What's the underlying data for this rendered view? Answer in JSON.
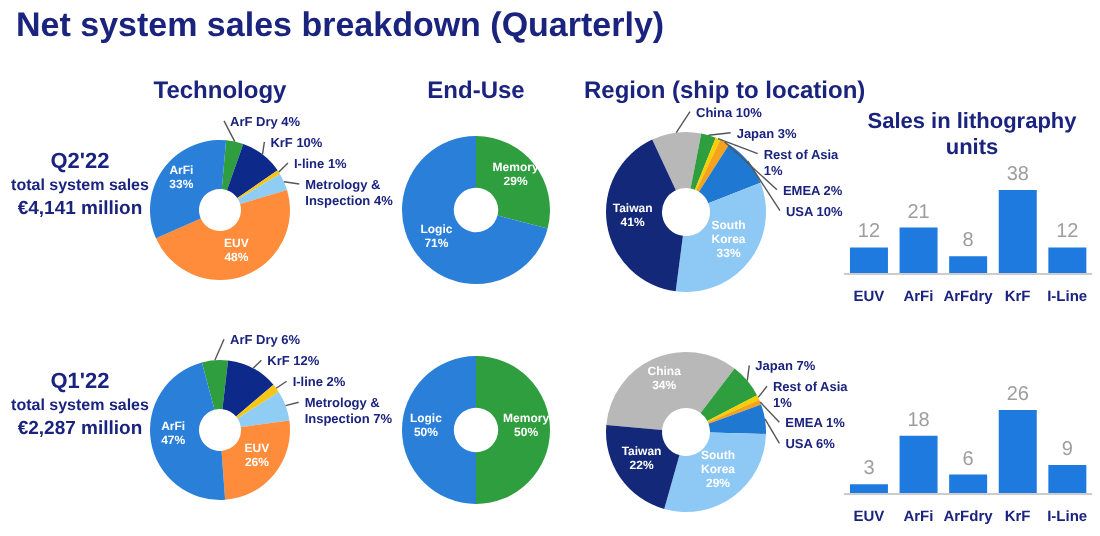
{
  "chart_data": [
    {
      "type": "other",
      "title": "Net system sales breakdown (Quarterly)",
      "annotations": [
        "Q2'22",
        "total system sales",
        "€4,141 million"
      ]
    },
    {
      "type": "donut",
      "title": "Technology",
      "categories": [
        "ArF Dry",
        "KrF",
        "I-line",
        "Metrology & Inspection",
        "EUV",
        "ArFi"
      ],
      "values": [
        4,
        10,
        1,
        4,
        48,
        33
      ],
      "value_labels": [
        "4%",
        "10%",
        "1%",
        "4%",
        "48%",
        "33%"
      ],
      "colors": [
        "#2e9e3e",
        "#0d2a8a",
        "#f5c518",
        "#90cdf4",
        "#ff8c3a",
        "#2a7fd8"
      ]
    },
    {
      "type": "donut",
      "title": "End-Use",
      "categories": [
        "Memory",
        "Logic"
      ],
      "values": [
        29,
        71
      ],
      "value_labels": [
        "29%",
        "71%"
      ],
      "colors": [
        "#2e9e3e",
        "#2a7fd8"
      ]
    },
    {
      "type": "donut",
      "title": "Region (ship to location)",
      "categories": [
        "China",
        "Japan",
        "Rest of Asia",
        "EMEA",
        "USA",
        "South Korea",
        "Taiwan"
      ],
      "values": [
        10,
        3,
        1,
        2,
        10,
        33,
        41
      ],
      "value_labels": [
        "10%",
        "3%",
        "1%",
        "2%",
        "10%",
        "33%",
        "41%"
      ],
      "colors": [
        "#b8b8b8",
        "#2e9e3e",
        "#f5d000",
        "#f7a21b",
        "#1f78d1",
        "#8ec8f5",
        "#14287a"
      ]
    },
    {
      "type": "bar",
      "title": "Sales in lithography units",
      "categories": [
        "EUV",
        "ArFi",
        "ArFdry",
        "KrF",
        "I-Line"
      ],
      "values": [
        12,
        21,
        8,
        38,
        12
      ],
      "color": "#1f7ae0",
      "data_labels": true,
      "tick_labels": "x"
    },
    {
      "type": "other",
      "annotations": [
        "Q1'22",
        "total system sales",
        "€2,287 million"
      ]
    },
    {
      "type": "donut",
      "categories": [
        "ArF Dry",
        "KrF",
        "I-line",
        "Metrology & Inspection",
        "EUV",
        "ArFi"
      ],
      "values": [
        6,
        12,
        2,
        7,
        26,
        47
      ],
      "value_labels": [
        "6%",
        "12%",
        "2%",
        "7%",
        "26%",
        "47%"
      ],
      "colors": [
        "#2e9e3e",
        "#0d2a8a",
        "#f5c518",
        "#90cdf4",
        "#ff8c3a",
        "#2a7fd8"
      ]
    },
    {
      "type": "donut",
      "categories": [
        "Memory",
        "Logic"
      ],
      "values": [
        50,
        50
      ],
      "value_labels": [
        "50%",
        "50%"
      ],
      "colors": [
        "#2e9e3e",
        "#2a7fd8"
      ]
    },
    {
      "type": "donut",
      "categories": [
        "China",
        "Japan",
        "Rest of Asia",
        "EMEA",
        "USA",
        "South Korea",
        "Taiwan"
      ],
      "values": [
        34,
        7,
        1,
        1,
        6,
        29,
        22
      ],
      "value_labels": [
        "34%",
        "7%",
        "1%",
        "1%",
        "6%",
        "29%",
        "22%"
      ],
      "colors": [
        "#b8b8b8",
        "#2e9e3e",
        "#f5d000",
        "#f7a21b",
        "#1f78d1",
        "#8ec8f5",
        "#14287a"
      ]
    },
    {
      "type": "bar",
      "categories": [
        "EUV",
        "ArFi",
        "ArFdry",
        "KrF",
        "I-Line"
      ],
      "values": [
        3,
        18,
        6,
        26,
        9
      ],
      "color": "#1f7ae0",
      "data_labels": true,
      "tick_labels": "x"
    }
  ]
}
